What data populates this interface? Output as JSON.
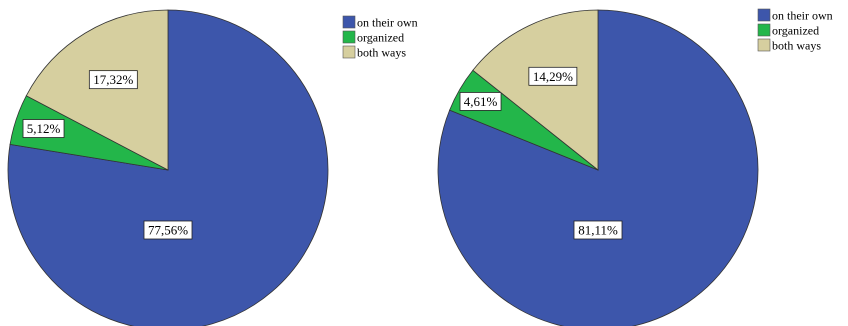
{
  "chart_data": [
    {
      "type": "pie",
      "categories": [
        "on their own",
        "organized",
        "both ways"
      ],
      "values": [
        77.56,
        5.12,
        17.32
      ],
      "labels": [
        "77,56%",
        "5,12%",
        "17,32%"
      ],
      "colors": [
        "#3d56ab",
        "#23b64a",
        "#d6cf9f"
      ],
      "legend_position": "top-right"
    },
    {
      "type": "pie",
      "categories": [
        "on their own",
        "organized",
        "both ways"
      ],
      "values": [
        81.11,
        4.61,
        14.29
      ],
      "labels": [
        "81,11%",
        "4,61%",
        "14,29%"
      ],
      "colors": [
        "#3d56ab",
        "#23b64a",
        "#d6cf9f"
      ],
      "legend_position": "top-right"
    }
  ]
}
